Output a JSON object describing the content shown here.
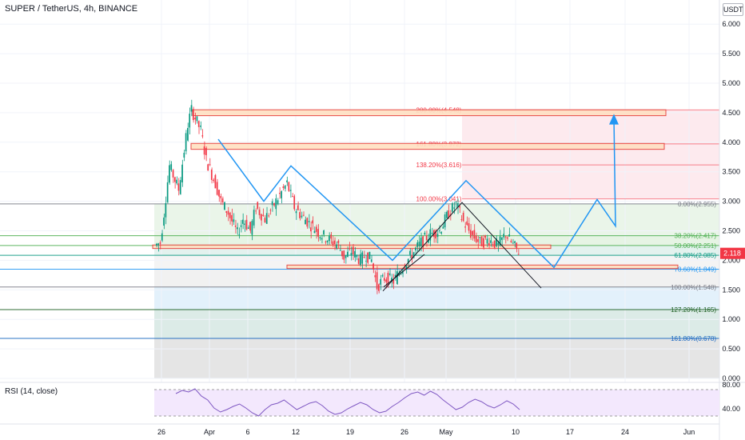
{
  "header": {
    "title": "SUPER / TetherUS, 4h, BINANCE",
    "currency": "USDT"
  },
  "rsi": {
    "label": "RSI (14, close)",
    "ticks": [
      "80.00",
      "40.00"
    ]
  },
  "price_badge": {
    "value": "2.118",
    "color": "#f23645"
  },
  "colors": {
    "fib_pink": "#f23645",
    "blue_path": "#2196f3",
    "zone_fill": "#ffe0c2",
    "zone_border": "#e53935"
  },
  "chart_data": {
    "type": "candlestick",
    "y_ticks": [
      "6.000",
      "5.500",
      "5.000",
      "4.500",
      "4.000",
      "3.500",
      "3.000",
      "2.500",
      "2.000",
      "1.500",
      "1.000",
      "0.500",
      "0.000"
    ],
    "x_ticks": [
      "26",
      "Apr",
      "6",
      "12",
      "19",
      "26",
      "May",
      "10",
      "17",
      "24",
      "Jun"
    ],
    "fib_upper": [
      {
        "label": "200.00%(4.548)",
        "value": 4.548
      },
      {
        "label": "161.80%(3.972)",
        "value": 3.972
      },
      {
        "label": "138.20%(3.616)",
        "value": 3.616
      },
      {
        "label": "100.00%(3.041)",
        "value": 3.041
      }
    ],
    "fib_lower": [
      {
        "label": "0.00%(2.955)",
        "value": 2.955,
        "color": "#787b86"
      },
      {
        "label": "38.20%(2.417)",
        "value": 2.417,
        "color": "#4caf50"
      },
      {
        "label": "50.00%(2.251)",
        "value": 2.251,
        "color": "#4caf50"
      },
      {
        "label": "61.80%(2.085)",
        "value": 2.085,
        "color": "#089981"
      },
      {
        "label": "78.60%(1.849)",
        "value": 1.849,
        "color": "#2196f3"
      },
      {
        "label": "100.00%(1.548)",
        "value": 1.548,
        "color": "#787b86"
      },
      {
        "label": "127.20%(1.165)",
        "value": 1.165,
        "color": "#1b5e20"
      },
      {
        "label": "161.80%(0.678)",
        "value": 0.678,
        "color": "#1565c0"
      }
    ]
  }
}
